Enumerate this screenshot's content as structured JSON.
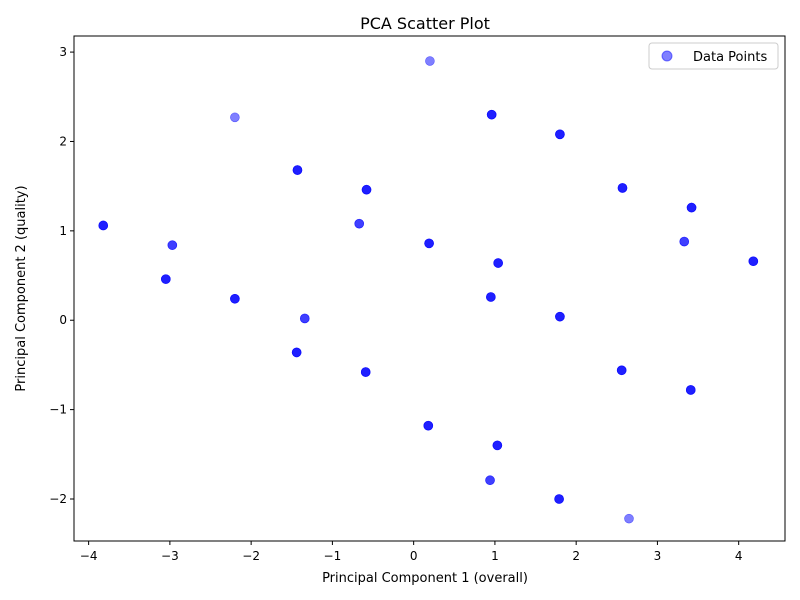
{
  "chart_data": {
    "type": "scatter",
    "title": "PCA Scatter Plot",
    "xlabel": "Principal Component 1 (overall)",
    "ylabel": "Principal Component 2 (quality)",
    "xlim": [
      -4.18,
      4.57
    ],
    "ylim": [
      -2.47,
      3.18
    ],
    "xticks": [
      -4,
      -3,
      -2,
      -1,
      0,
      1,
      2,
      3,
      4
    ],
    "yticks": [
      -2,
      -1,
      0,
      1,
      2,
      3
    ],
    "xtick_labels": [
      "−4",
      "−3",
      "−2",
      "−1",
      "0",
      "1",
      "2",
      "3",
      "4"
    ],
    "ytick_labels": [
      "−2",
      "−1",
      "0",
      "1",
      "2",
      "3"
    ],
    "grid": false,
    "legend_position": "top-right",
    "series": [
      {
        "name": "Data Points",
        "color": "#0000ff",
        "alpha": 0.5,
        "points": [
          [
            0.2,
            2.9
          ],
          [
            -2.2,
            2.27
          ],
          [
            0.96,
            2.3
          ],
          [
            0.96,
            2.3
          ],
          [
            0.96,
            2.3
          ],
          [
            1.8,
            2.08
          ],
          [
            1.8,
            2.08
          ],
          [
            1.8,
            2.08
          ],
          [
            -1.43,
            1.68
          ],
          [
            -1.43,
            1.68
          ],
          [
            -1.43,
            1.68
          ],
          [
            -0.58,
            1.46
          ],
          [
            -0.58,
            1.46
          ],
          [
            -0.58,
            1.46
          ],
          [
            2.57,
            1.48
          ],
          [
            2.57,
            1.48
          ],
          [
            2.57,
            1.48
          ],
          [
            3.42,
            1.26
          ],
          [
            3.42,
            1.26
          ],
          [
            3.42,
            1.26
          ],
          [
            -3.82,
            1.06
          ],
          [
            -3.82,
            1.06
          ],
          [
            -3.82,
            1.06
          ],
          [
            -0.67,
            1.08
          ],
          [
            -0.67,
            1.08
          ],
          [
            -2.97,
            0.84
          ],
          [
            -2.97,
            0.84
          ],
          [
            3.33,
            0.88
          ],
          [
            3.33,
            0.88
          ],
          [
            0.19,
            0.86
          ],
          [
            0.19,
            0.86
          ],
          [
            0.19,
            0.86
          ],
          [
            1.04,
            0.64
          ],
          [
            1.04,
            0.64
          ],
          [
            1.04,
            0.64
          ],
          [
            4.18,
            0.66
          ],
          [
            4.18,
            0.66
          ],
          [
            4.18,
            0.66
          ],
          [
            -3.05,
            0.46
          ],
          [
            -3.05,
            0.46
          ],
          [
            -3.05,
            0.46
          ],
          [
            -2.2,
            0.24
          ],
          [
            -2.2,
            0.24
          ],
          [
            -2.2,
            0.24
          ],
          [
            0.95,
            0.26
          ],
          [
            0.95,
            0.26
          ],
          [
            0.95,
            0.26
          ],
          [
            -1.34,
            0.02
          ],
          [
            -1.34,
            0.02
          ],
          [
            1.8,
            0.04
          ],
          [
            1.8,
            0.04
          ],
          [
            1.8,
            0.04
          ],
          [
            -1.44,
            -0.36
          ],
          [
            -1.44,
            -0.36
          ],
          [
            -1.44,
            -0.36
          ],
          [
            -0.59,
            -0.58
          ],
          [
            -0.59,
            -0.58
          ],
          [
            -0.59,
            -0.58
          ],
          [
            2.56,
            -0.56
          ],
          [
            2.56,
            -0.56
          ],
          [
            2.56,
            -0.56
          ],
          [
            3.41,
            -0.78
          ],
          [
            3.41,
            -0.78
          ],
          [
            3.41,
            -0.78
          ],
          [
            0.18,
            -1.18
          ],
          [
            0.18,
            -1.18
          ],
          [
            0.18,
            -1.18
          ],
          [
            1.03,
            -1.4
          ],
          [
            1.03,
            -1.4
          ],
          [
            1.03,
            -1.4
          ],
          [
            0.94,
            -1.79
          ],
          [
            0.94,
            -1.79
          ],
          [
            1.79,
            -2.0
          ],
          [
            1.79,
            -2.0
          ],
          [
            1.79,
            -2.0
          ],
          [
            2.65,
            -2.22
          ]
        ]
      }
    ]
  }
}
